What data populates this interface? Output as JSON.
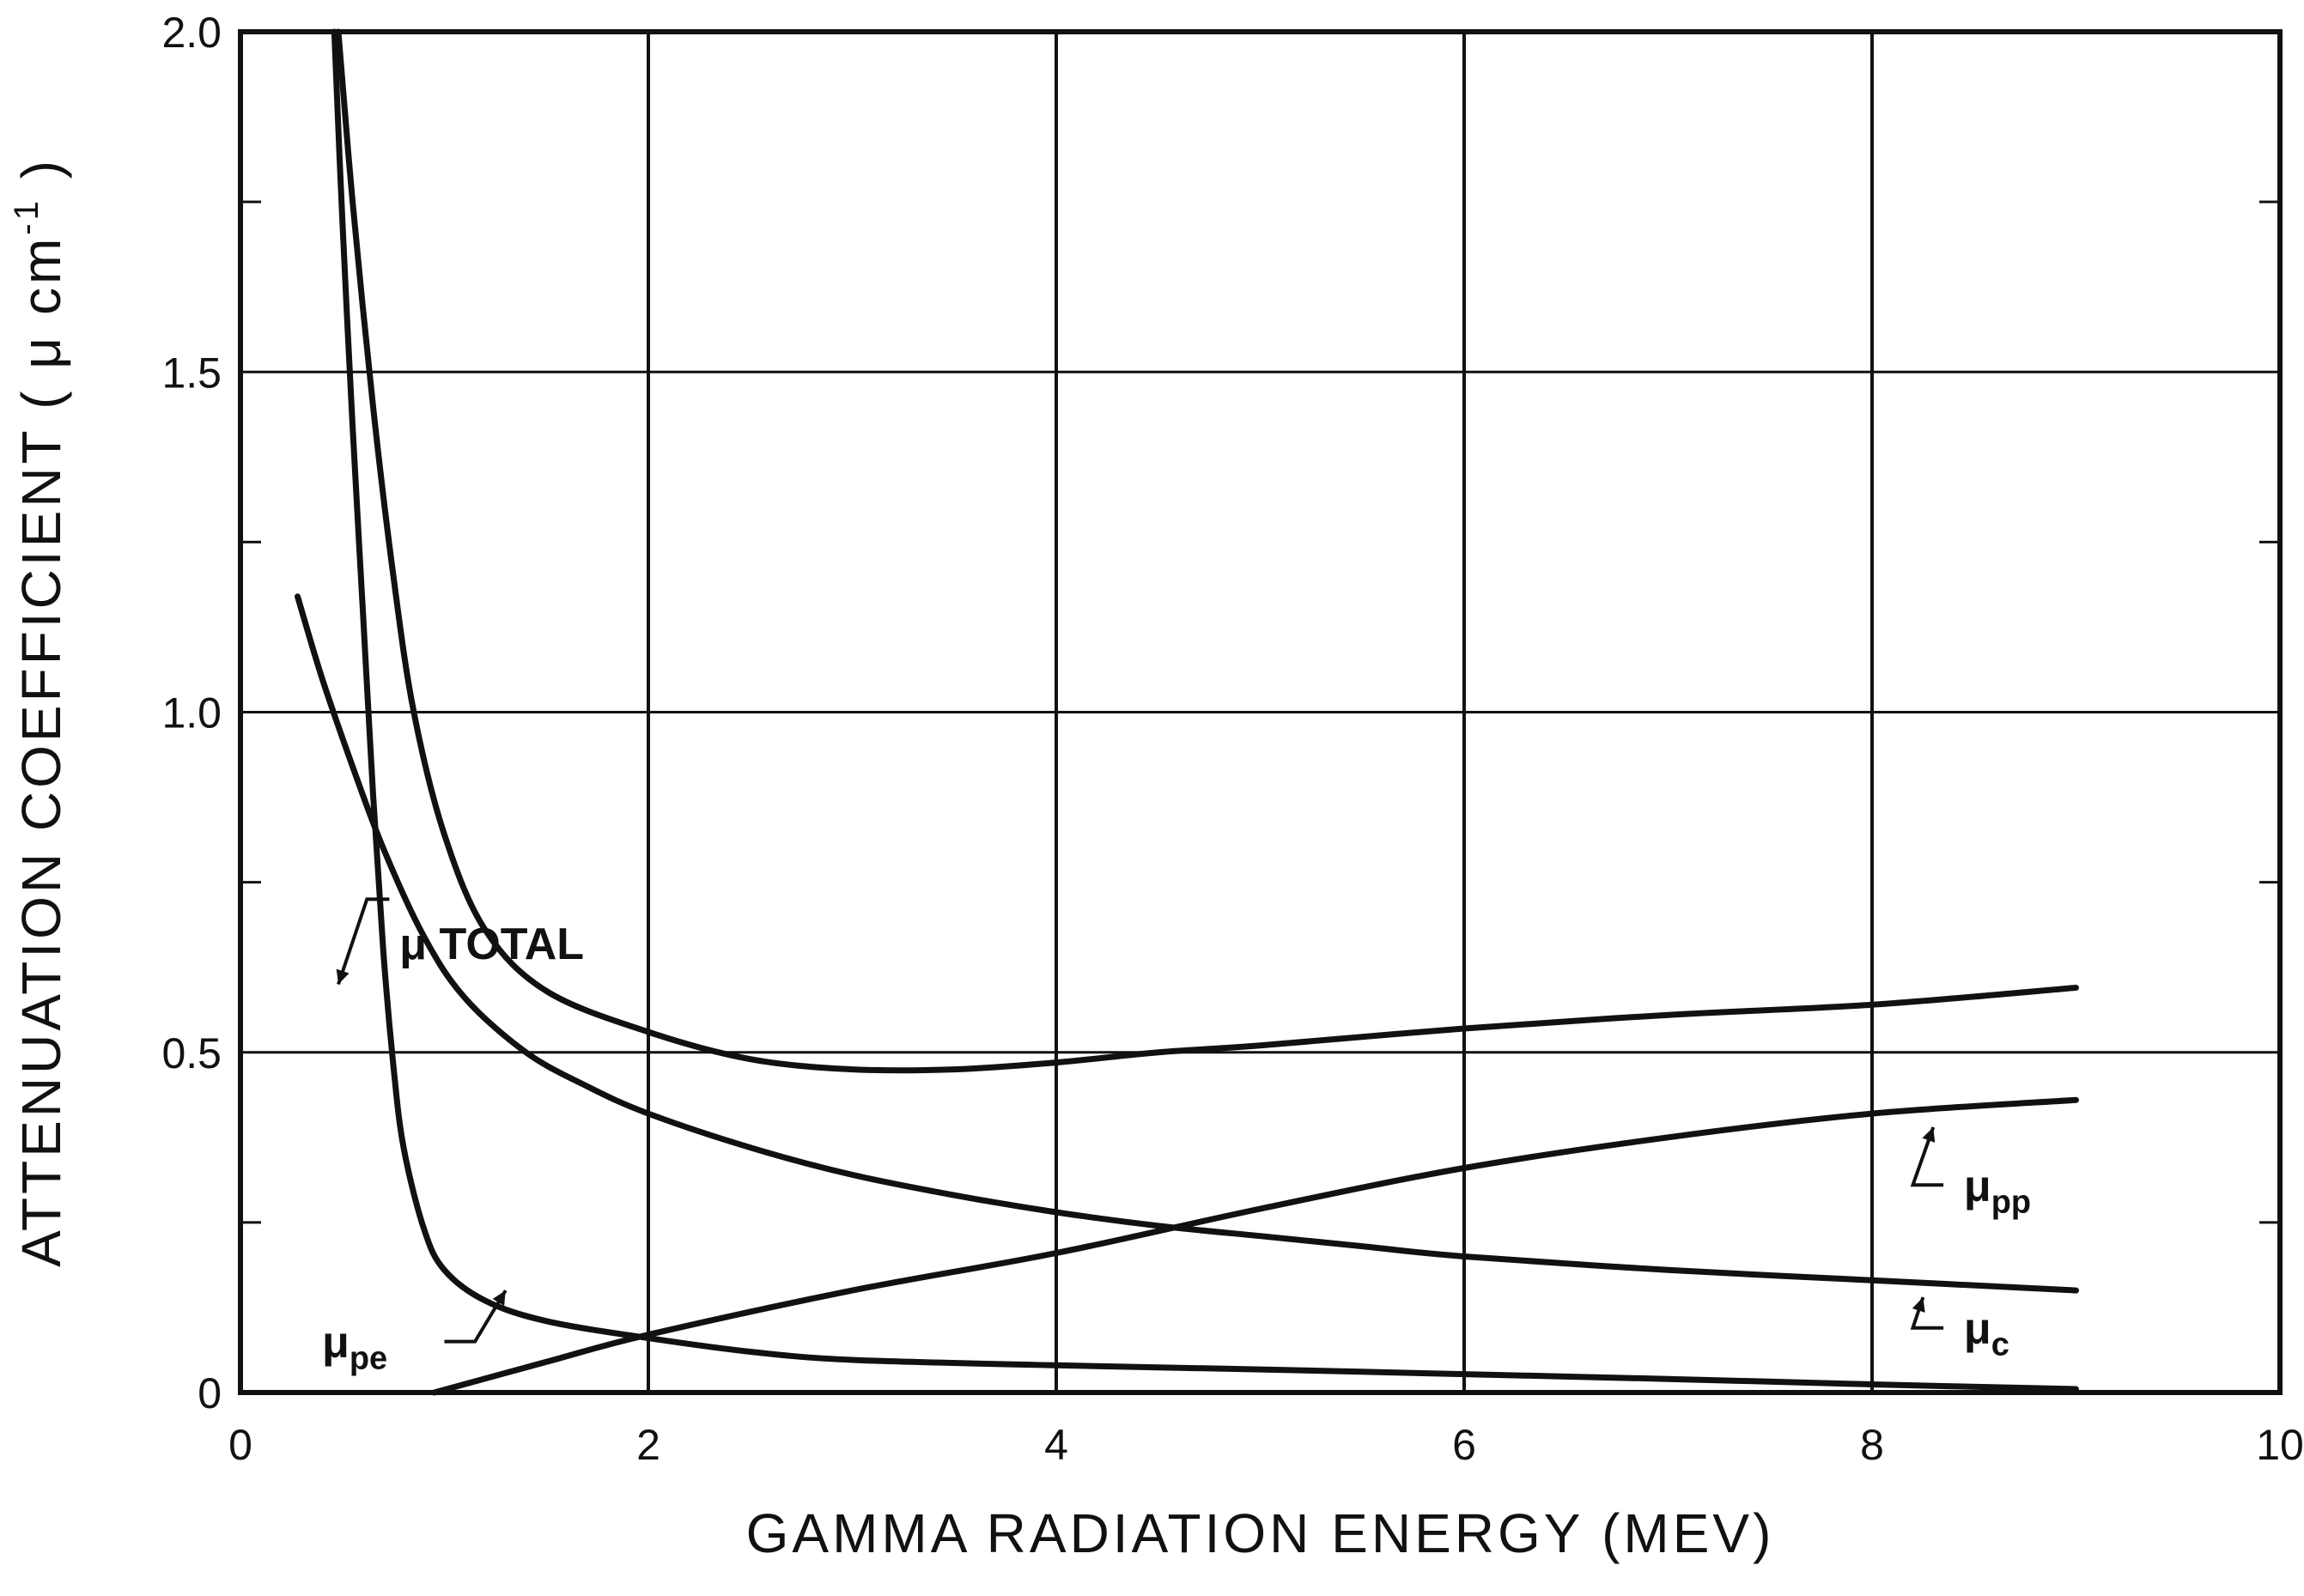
{
  "chart_data": {
    "type": "line",
    "title": "",
    "xlabel": "GAMMA RADIATION ENERGY (MEV)",
    "ylabel": {
      "text": "ATTENUATION COEFFICIENT ( μ cm",
      "superscript": "-1",
      "close": " )"
    },
    "xlim": [
      0,
      10
    ],
    "ylim": [
      0,
      2.0
    ],
    "x_ticks": [
      0,
      2,
      4,
      6,
      8,
      10
    ],
    "x_tick_labels": [
      "0",
      "2",
      "4",
      "6",
      "8",
      "10"
    ],
    "y_ticks": [
      0,
      0.5,
      1.0,
      1.5,
      2.0
    ],
    "y_tick_labels": [
      "0",
      "0.5",
      "1.0",
      "1.5",
      "2.0"
    ],
    "y_minor_ticks": [
      0.25,
      0.75,
      1.25,
      1.75
    ],
    "grid": true,
    "legend": "none (curves labeled directly)",
    "series": [
      {
        "name": "μ TOTAL",
        "label_main": "μ TOTAL",
        "label_sub": "",
        "x": [
          0.48,
          0.55,
          0.65,
          0.75,
          0.85,
          1.0,
          1.2,
          1.5,
          2.0,
          2.5,
          3.0,
          3.5,
          4.0,
          4.5,
          5.0,
          6.0,
          7.0,
          8.0,
          9.0
        ],
        "y": [
          2.0,
          1.75,
          1.45,
          1.2,
          1.0,
          0.82,
          0.68,
          0.59,
          0.53,
          0.49,
          0.475,
          0.475,
          0.485,
          0.5,
          0.51,
          0.535,
          0.555,
          0.57,
          0.595
        ]
      },
      {
        "name": "μc",
        "label_main": "μ",
        "label_sub": "c",
        "x": [
          0.28,
          0.4,
          0.55,
          0.7,
          0.9,
          1.1,
          1.4,
          1.7,
          2.0,
          2.5,
          3.0,
          3.5,
          4.0,
          4.5,
          5.0,
          5.5,
          6.0,
          7.0,
          8.0,
          9.0
        ],
        "y": [
          1.17,
          1.05,
          0.92,
          0.8,
          0.67,
          0.58,
          0.5,
          0.45,
          0.41,
          0.36,
          0.32,
          0.29,
          0.265,
          0.245,
          0.23,
          0.215,
          0.2,
          0.18,
          0.165,
          0.15
        ]
      },
      {
        "name": "μpe",
        "label_main": "μ",
        "label_sub": "pe",
        "x": [
          0.46,
          0.5,
          0.55,
          0.6,
          0.65,
          0.7,
          0.75,
          0.8,
          0.9,
          1.0,
          1.2,
          1.5,
          2.0,
          2.5,
          3.0,
          4.0,
          5.0,
          6.0,
          7.0,
          8.0,
          9.0
        ],
        "y": [
          2.0,
          1.72,
          1.42,
          1.15,
          0.88,
          0.65,
          0.48,
          0.36,
          0.24,
          0.18,
          0.135,
          0.105,
          0.08,
          0.06,
          0.048,
          0.04,
          0.034,
          0.027,
          0.02,
          0.012,
          0.005
        ]
      },
      {
        "name": "μpp",
        "label_main": "μ",
        "label_sub": "pp",
        "x": [
          0.95,
          1.5,
          2.0,
          3.0,
          4.0,
          5.0,
          6.0,
          7.0,
          8.0,
          9.0
        ],
        "y": [
          0.0,
          0.045,
          0.085,
          0.15,
          0.205,
          0.27,
          0.33,
          0.375,
          0.41,
          0.43
        ]
      }
    ]
  },
  "ui": {
    "stroke_color": "#111111",
    "background": "#ffffff"
  }
}
